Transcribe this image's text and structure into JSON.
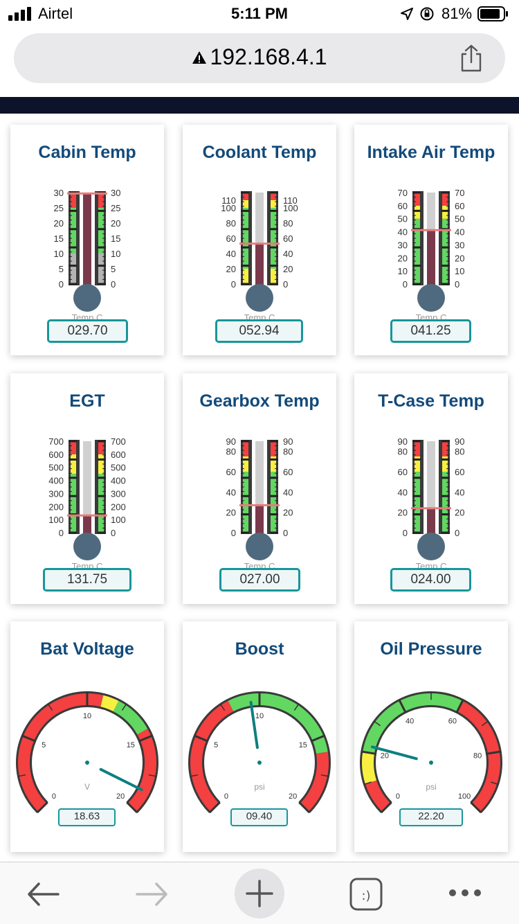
{
  "status": {
    "carrier": "Airtel",
    "time": "5:11 PM",
    "battery": "81%",
    "icons": [
      "signal-icon",
      "location-arrow-icon",
      "orientation-lock-icon",
      "battery-icon"
    ]
  },
  "address": {
    "url": "192.168.4.1",
    "icons": [
      "warning-icon",
      "share-icon"
    ]
  },
  "colors": {
    "red": "#f44040",
    "green": "#62d862",
    "yellow": "#f8f040",
    "mercury": "#7a3a4c",
    "bulb": "#4f6a7e",
    "title": "#124a7a",
    "readout_border": "#17969a"
  },
  "thermometers": [
    {
      "title": "Cabin Temp",
      "ticks": [
        "30",
        "25",
        "20",
        "15",
        "10",
        "5",
        "0"
      ],
      "min": 0,
      "max": 30,
      "value": 29.7,
      "readout": "029.70",
      "unit": "Temp C",
      "bands": [
        {
          "from": 0,
          "to": 10,
          "color": "gray"
        },
        {
          "from": 10,
          "to": 25,
          "color": "green"
        },
        {
          "from": 25,
          "to": 30,
          "color": "red"
        }
      ]
    },
    {
      "title": "Coolant Temp",
      "ticks": [
        "110",
        "100",
        "80",
        "60",
        "40",
        "20",
        "0"
      ],
      "min": 0,
      "max": 120,
      "value": 52.94,
      "readout": "052.94",
      "unit": "Temp C",
      "bands": [
        {
          "from": 0,
          "to": 20,
          "color": "yellow"
        },
        {
          "from": 20,
          "to": 100,
          "color": "green"
        },
        {
          "from": 100,
          "to": 110,
          "color": "yellow"
        },
        {
          "from": 110,
          "to": 120,
          "color": "red"
        }
      ]
    },
    {
      "title": "Intake Air Temp",
      "ticks": [
        "70",
        "60",
        "50",
        "40",
        "30",
        "20",
        "10",
        "0"
      ],
      "min": 0,
      "max": 70,
      "value": 41.25,
      "readout": "041.25",
      "unit": "Temp C",
      "bands": [
        {
          "from": 0,
          "to": 50,
          "color": "green"
        },
        {
          "from": 50,
          "to": 60,
          "color": "yellow"
        },
        {
          "from": 60,
          "to": 70,
          "color": "red"
        }
      ]
    },
    {
      "title": "EGT",
      "ticks": [
        "700",
        "600",
        "500",
        "400",
        "300",
        "200",
        "100",
        "0"
      ],
      "min": 0,
      "max": 700,
      "value": 131.75,
      "readout": "131.75",
      "unit": "Temp C",
      "bands": [
        {
          "from": 0,
          "to": 450,
          "color": "green"
        },
        {
          "from": 450,
          "to": 600,
          "color": "yellow"
        },
        {
          "from": 600,
          "to": 700,
          "color": "red"
        }
      ]
    },
    {
      "title": "Gearbox Temp",
      "ticks": [
        "90",
        "80",
        "60",
        "40",
        "20",
        "0"
      ],
      "min": 0,
      "max": 90,
      "value": 27.0,
      "readout": "027.00",
      "unit": "Temp C",
      "bands": [
        {
          "from": 0,
          "to": 60,
          "color": "green"
        },
        {
          "from": 60,
          "to": 75,
          "color": "yellow"
        },
        {
          "from": 75,
          "to": 90,
          "color": "red"
        }
      ]
    },
    {
      "title": "T-Case Temp",
      "ticks": [
        "90",
        "80",
        "60",
        "40",
        "20",
        "0"
      ],
      "min": 0,
      "max": 90,
      "value": 24.0,
      "readout": "024.00",
      "unit": "Temp C",
      "bands": [
        {
          "from": 0,
          "to": 60,
          "color": "green"
        },
        {
          "from": 60,
          "to": 75,
          "color": "yellow"
        },
        {
          "from": 75,
          "to": 90,
          "color": "red"
        }
      ]
    }
  ],
  "dials": [
    {
      "title": "Bat Voltage",
      "ticks": [
        "0",
        "5",
        "10",
        "15",
        "20"
      ],
      "min": 0,
      "max": 20,
      "value": 18.63,
      "readout": "18.63",
      "unit": "V",
      "bands": [
        {
          "from": 0,
          "to": 11,
          "color": "red"
        },
        {
          "from": 11,
          "to": 12,
          "color": "yellow"
        },
        {
          "from": 12,
          "to": 14.5,
          "color": "green"
        },
        {
          "from": 14.5,
          "to": 20,
          "color": "red"
        }
      ]
    },
    {
      "title": "Boost",
      "ticks": [
        "0",
        "5",
        "10",
        "15",
        "20"
      ],
      "min": 0,
      "max": 20,
      "value": 9.4,
      "readout": "09.40",
      "unit": "psi",
      "bands": [
        {
          "from": 0,
          "to": 8,
          "color": "red"
        },
        {
          "from": 8,
          "to": 16,
          "color": "green"
        },
        {
          "from": 16,
          "to": 20,
          "color": "red"
        }
      ]
    },
    {
      "title": "Oil Pressure",
      "ticks": [
        "0",
        "20",
        "40",
        "60",
        "80",
        "100"
      ],
      "min": 0,
      "max": 100,
      "value": 22.2,
      "readout": "22.20",
      "unit": "psi",
      "bands": [
        {
          "from": 0,
          "to": 10,
          "color": "red"
        },
        {
          "from": 10,
          "to": 20,
          "color": "yellow"
        },
        {
          "from": 20,
          "to": 60,
          "color": "green"
        },
        {
          "from": 60,
          "to": 100,
          "color": "red"
        }
      ]
    }
  ],
  "toolbar": {
    "icons": [
      "back-arrow-icon",
      "forward-arrow-icon",
      "new-tab-plus-icon",
      "tabs-smiley-icon",
      "more-dots-icon"
    ]
  }
}
